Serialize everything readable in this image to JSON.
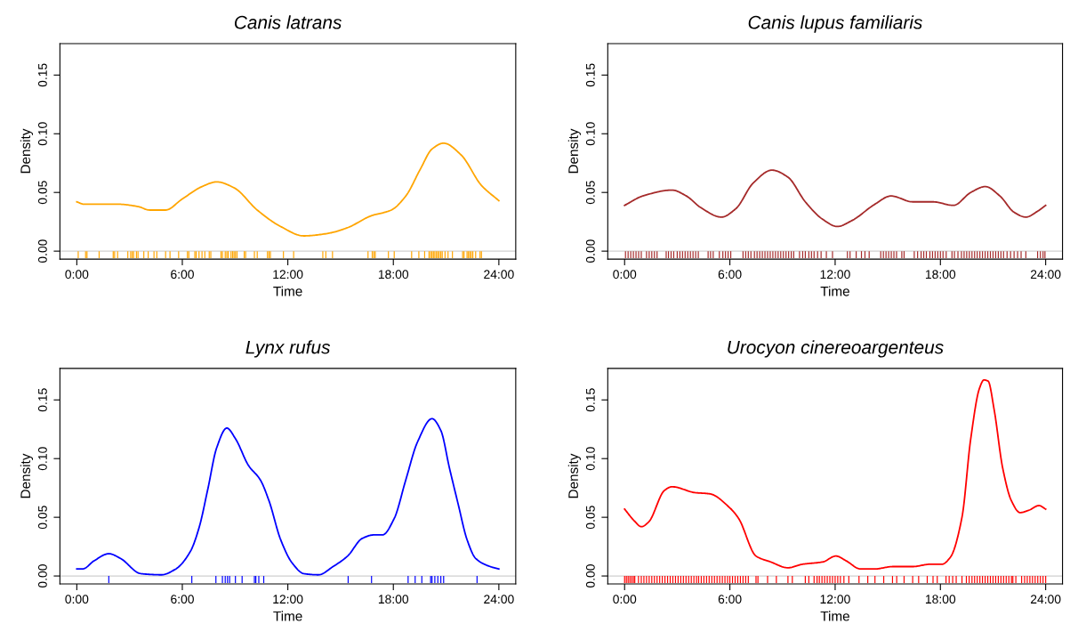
{
  "chart_data": [
    {
      "type": "line",
      "title": "Canis latrans",
      "xlabel": "Time",
      "ylabel": "Density",
      "xlim": [
        -0.96,
        24.96
      ],
      "ylim": [
        -0.0068,
        0.1768
      ],
      "xticks": [
        {
          "value": 0,
          "label": "0:00"
        },
        {
          "value": 6,
          "label": "6:00"
        },
        {
          "value": 12,
          "label": "12:00"
        },
        {
          "value": 18,
          "label": "18:00"
        },
        {
          "value": 24,
          "label": "24:00"
        }
      ],
      "yticks": [
        {
          "value": 0,
          "label": "0.00"
        },
        {
          "value": 0.05,
          "label": "0.05"
        },
        {
          "value": 0.1,
          "label": "0.10"
        },
        {
          "value": 0.15,
          "label": "0.15"
        }
      ],
      "grid": false,
      "ref_lines": [
        {
          "axis": "y",
          "value": 0,
          "color": "#d0d0d0"
        }
      ],
      "series": [
        {
          "color": "#ffa500",
          "x": [
            0,
            0.41,
            2.32,
            3.48,
            4.14,
            5.05,
            5.96,
            7.12,
            7.95,
            8.94,
            10.26,
            11.59,
            12.91,
            14.24,
            15.4,
            16.72,
            17.88,
            18.71,
            19.54,
            20.2,
            20.86,
            21.85,
            23.01,
            24.0
          ],
          "values": [
            0.042,
            0.04,
            0.04,
            0.038,
            0.035,
            0.035,
            0.044,
            0.055,
            0.059,
            0.054,
            0.035,
            0.021,
            0.013,
            0.015,
            0.02,
            0.03,
            0.035,
            0.047,
            0.07,
            0.087,
            0.092,
            0.082,
            0.056,
            0.043
          ]
        },
        {
          "type": "bar",
          "color": "#ffa500",
          "x": [
            0.08,
            0.5,
            0.58,
            1.27,
            2.07,
            2.15,
            2.32,
            2.9,
            3.06,
            3.15,
            3.23,
            3.39,
            3.48,
            3.81,
            4.06,
            4.39,
            4.55,
            5.05,
            5.3,
            5.79,
            6.29,
            6.37,
            6.71,
            6.79,
            6.95,
            7.12,
            7.28,
            7.53,
            7.62,
            8.2,
            8.28,
            8.44,
            8.53,
            8.61,
            8.77,
            8.86,
            8.94,
            9.02,
            9.11,
            9.52,
            9.6,
            10.1,
            10.26,
            10.84,
            10.93,
            11.01,
            11.75,
            12.33,
            13.99,
            14.16,
            14.54,
            16.56,
            16.8,
            16.89,
            16.97,
            17.72,
            18.05,
            19.04,
            19.45,
            19.78,
            20.03,
            20.12,
            20.2,
            20.28,
            20.36,
            20.45,
            20.53,
            20.61,
            20.7,
            20.78,
            20.94,
            21.11,
            21.36,
            21.94,
            22.02,
            22.19,
            22.27,
            22.35,
            22.43,
            22.52,
            22.68,
            22.93,
            23.01
          ],
          "values": [
            -0.006,
            -0.006,
            -0.006,
            -0.006,
            -0.006,
            -0.006,
            -0.006,
            -0.006,
            -0.006,
            -0.006,
            -0.006,
            -0.006,
            -0.006,
            -0.006,
            -0.006,
            -0.006,
            -0.006,
            -0.006,
            -0.006,
            -0.006,
            -0.006,
            -0.006,
            -0.006,
            -0.006,
            -0.006,
            -0.006,
            -0.006,
            -0.006,
            -0.006,
            -0.006,
            -0.006,
            -0.006,
            -0.006,
            -0.006,
            -0.006,
            -0.006,
            -0.006,
            -0.006,
            -0.006,
            -0.006,
            -0.006,
            -0.006,
            -0.006,
            -0.006,
            -0.006,
            -0.006,
            -0.006,
            -0.006,
            -0.006,
            -0.006,
            -0.006,
            -0.006,
            -0.006,
            -0.006,
            -0.006,
            -0.006,
            -0.006,
            -0.006,
            -0.006,
            -0.006,
            -0.006,
            -0.006,
            -0.006,
            -0.006,
            -0.006,
            -0.006,
            -0.006,
            -0.006,
            -0.006,
            -0.006,
            -0.006,
            -0.006,
            -0.006,
            -0.006,
            -0.006,
            -0.006,
            -0.006,
            -0.006,
            -0.006,
            -0.006,
            -0.006,
            -0.006,
            -0.006
          ]
        }
      ]
    },
    {
      "type": "line",
      "title": "Canis lupus familiaris",
      "xlabel": "Time",
      "ylabel": "Density",
      "xlim": [
        -0.96,
        24.96
      ],
      "ylim": [
        -0.0068,
        0.1768
      ],
      "xticks": [
        {
          "value": 0,
          "label": "0:00"
        },
        {
          "value": 6,
          "label": "6:00"
        },
        {
          "value": 12,
          "label": "12:00"
        },
        {
          "value": 18,
          "label": "18:00"
        },
        {
          "value": 24,
          "label": "24:00"
        }
      ],
      "yticks": [
        {
          "value": 0,
          "label": "0.00"
        },
        {
          "value": 0.05,
          "label": "0.05"
        },
        {
          "value": 0.1,
          "label": "0.10"
        },
        {
          "value": 0.15,
          "label": "0.15"
        }
      ],
      "grid": false,
      "ref_lines": [
        {
          "axis": "y",
          "value": 0,
          "color": "#d0d0d0"
        }
      ],
      "series": [
        {
          "color": "#a52a2a",
          "x": [
            0,
            1.04,
            2.7,
            3.52,
            4.35,
            5.51,
            6.33,
            7.33,
            8.4,
            9.31,
            10.3,
            11.3,
            12.12,
            12.95,
            14.27,
            15.18,
            16.42,
            17.58,
            18.74,
            19.73,
            20.56,
            21.39,
            22.21,
            22.87,
            23.54,
            24.0
          ],
          "values": [
            0.039,
            0.047,
            0.052,
            0.047,
            0.037,
            0.029,
            0.036,
            0.058,
            0.069,
            0.063,
            0.042,
            0.027,
            0.021,
            0.026,
            0.04,
            0.047,
            0.042,
            0.042,
            0.039,
            0.05,
            0.055,
            0.047,
            0.033,
            0.029,
            0.034,
            0.039
          ]
        },
        {
          "type": "bar",
          "color": "#a52a2a",
          "x": [
            0.05,
            0.2,
            0.35,
            0.5,
            0.65,
            0.8,
            0.95,
            1.25,
            1.4,
            1.55,
            1.7,
            1.85,
            2.37,
            2.5,
            2.65,
            2.8,
            3.0,
            3.15,
            3.3,
            3.45,
            3.6,
            3.75,
            3.9,
            4.05,
            4.2,
            4.76,
            4.9,
            5.05,
            5.4,
            5.6,
            5.75,
            5.9,
            6.05,
            6.75,
            6.9,
            7.05,
            7.2,
            7.4,
            7.55,
            7.7,
            7.85,
            8.0,
            8.15,
            8.3,
            8.45,
            8.6,
            8.75,
            8.9,
            9.05,
            9.2,
            9.35,
            9.5,
            9.64,
            9.97,
            10.15,
            10.3,
            10.5,
            10.65,
            10.8,
            11.0,
            11.2,
            11.5,
            11.85,
            12.7,
            12.85,
            13.2,
            13.5,
            13.7,
            13.94,
            14.6,
            14.75,
            14.9,
            15.05,
            15.2,
            15.35,
            15.5,
            15.8,
            15.93,
            16.51,
            16.7,
            16.9,
            17.05,
            17.2,
            17.4,
            17.55,
            17.7,
            17.85,
            18.0,
            18.15,
            18.33,
            18.66,
            18.8,
            19.0,
            19.2,
            19.35,
            19.5,
            19.65,
            19.8,
            19.95,
            20.1,
            20.25,
            20.4,
            20.55,
            20.7,
            20.85,
            21.0,
            21.15,
            21.3,
            21.45,
            21.6,
            21.8,
            22.0,
            22.2,
            22.4,
            22.6,
            22.87,
            23.54,
            23.7,
            23.85,
            23.96
          ],
          "values": [
            -0.006,
            -0.006,
            -0.006,
            -0.006,
            -0.006,
            -0.006,
            -0.006,
            -0.006,
            -0.006,
            -0.006,
            -0.006,
            -0.006,
            -0.006,
            -0.006,
            -0.006,
            -0.006,
            -0.006,
            -0.006,
            -0.006,
            -0.006,
            -0.006,
            -0.006,
            -0.006,
            -0.006,
            -0.006,
            -0.006,
            -0.006,
            -0.006,
            -0.006,
            -0.006,
            -0.006,
            -0.006,
            -0.006,
            -0.006,
            -0.006,
            -0.006,
            -0.006,
            -0.006,
            -0.006,
            -0.006,
            -0.006,
            -0.006,
            -0.006,
            -0.006,
            -0.006,
            -0.006,
            -0.006,
            -0.006,
            -0.006,
            -0.006,
            -0.006,
            -0.006,
            -0.006,
            -0.006,
            -0.006,
            -0.006,
            -0.006,
            -0.006,
            -0.006,
            -0.006,
            -0.006,
            -0.006,
            -0.006,
            -0.006,
            -0.006,
            -0.006,
            -0.006,
            -0.006,
            -0.006,
            -0.006,
            -0.006,
            -0.006,
            -0.006,
            -0.006,
            -0.006,
            -0.006,
            -0.006,
            -0.006,
            -0.006,
            -0.006,
            -0.006,
            -0.006,
            -0.006,
            -0.006,
            -0.006,
            -0.006,
            -0.006,
            -0.006,
            -0.006,
            -0.006,
            -0.006,
            -0.006,
            -0.006,
            -0.006,
            -0.006,
            -0.006,
            -0.006,
            -0.006,
            -0.006,
            -0.006,
            -0.006,
            -0.006,
            -0.006,
            -0.006,
            -0.006,
            -0.006,
            -0.006,
            -0.006,
            -0.006,
            -0.006,
            -0.006,
            -0.006,
            -0.006,
            -0.006,
            -0.006,
            -0.006,
            -0.006,
            -0.006,
            -0.006,
            -0.006
          ]
        }
      ]
    },
    {
      "type": "line",
      "title": "Lynx rufus",
      "xlabel": "Time",
      "ylabel": "Density",
      "xlim": [
        -0.96,
        24.96
      ],
      "ylim": [
        -0.0068,
        0.1768
      ],
      "xticks": [
        {
          "value": 0,
          "label": "0:00"
        },
        {
          "value": 6,
          "label": "6:00"
        },
        {
          "value": 12,
          "label": "12:00"
        },
        {
          "value": 18,
          "label": "18:00"
        },
        {
          "value": 24,
          "label": "24:00"
        }
      ],
      "yticks": [
        {
          "value": 0,
          "label": "0.00"
        },
        {
          "value": 0.05,
          "label": "0.05"
        },
        {
          "value": 0.1,
          "label": "0.10"
        },
        {
          "value": 0.15,
          "label": "0.15"
        }
      ],
      "grid": false,
      "ref_lines": [
        {
          "axis": "y",
          "value": 0,
          "color": "#d0d0d0"
        }
      ],
      "series": [
        {
          "color": "#0000ff",
          "x": [
            0,
            0.33,
            0.99,
            1.82,
            2.48,
            3.64,
            4.8,
            5.63,
            6.46,
            6.95,
            7.45,
            7.95,
            8.53,
            9.02,
            9.77,
            10.43,
            10.93,
            11.59,
            12.25,
            12.91,
            13.74,
            14.57,
            15.4,
            16.23,
            16.89,
            17.38,
            18.05,
            18.71,
            19.37,
            20.2,
            20.7,
            21.19,
            21.69,
            22.19,
            22.68,
            23.51,
            24.0
          ],
          "values": [
            0.006,
            0.006,
            0.013,
            0.019,
            0.015,
            0.002,
            0.001,
            0.006,
            0.021,
            0.041,
            0.074,
            0.109,
            0.126,
            0.117,
            0.094,
            0.082,
            0.064,
            0.031,
            0.011,
            0.002,
            0.001,
            0.008,
            0.017,
            0.032,
            0.035,
            0.035,
            0.049,
            0.082,
            0.114,
            0.134,
            0.124,
            0.092,
            0.061,
            0.031,
            0.015,
            0.008,
            0.006
          ]
        },
        {
          "type": "bar",
          "color": "#0000ff",
          "x": [
            1.82,
            6.54,
            7.91,
            8.28,
            8.44,
            8.57,
            8.69,
            9.02,
            9.4,
            10.1,
            10.18,
            10.35,
            10.63,
            15.43,
            16.76,
            18.84,
            19.24,
            19.62,
            20.12,
            20.2,
            20.36,
            20.53,
            20.7,
            20.86,
            22.76
          ],
          "values": [
            -0.006,
            -0.006,
            -0.006,
            -0.006,
            -0.006,
            -0.006,
            -0.006,
            -0.006,
            -0.006,
            -0.006,
            -0.006,
            -0.006,
            -0.006,
            -0.006,
            -0.006,
            -0.006,
            -0.006,
            -0.006,
            -0.006,
            -0.006,
            -0.006,
            -0.006,
            -0.006,
            -0.006,
            -0.006
          ]
        }
      ]
    },
    {
      "type": "line",
      "title": "Urocyon cinereoargenteus",
      "xlabel": "Time",
      "ylabel": "Density",
      "xlim": [
        -0.96,
        24.96
      ],
      "ylim": [
        -0.0068,
        0.1768
      ],
      "xticks": [
        {
          "value": 0,
          "label": "0:00"
        },
        {
          "value": 6,
          "label": "6:00"
        },
        {
          "value": 12,
          "label": "12:00"
        },
        {
          "value": 18,
          "label": "18:00"
        },
        {
          "value": 24,
          "label": "24:00"
        }
      ],
      "yticks": [
        {
          "value": 0,
          "label": "0.00"
        },
        {
          "value": 0.05,
          "label": "0.05"
        },
        {
          "value": 0.1,
          "label": "0.10"
        },
        {
          "value": 0.15,
          "label": "0.15"
        }
      ],
      "grid": false,
      "ref_lines": [
        {
          "axis": "y",
          "value": 0,
          "color": "#d0d0d0"
        }
      ],
      "series": [
        {
          "color": "#ff0000",
          "x": [
            0,
            0.55,
            0.96,
            1.37,
            2.28,
            2.7,
            4.02,
            4.85,
            6.0,
            6.5,
            7.49,
            8.32,
            9.31,
            10.14,
            11.3,
            12.04,
            12.62,
            13.45,
            14.27,
            15.27,
            16.42,
            17.42,
            18.08,
            18.57,
            19.23,
            19.73,
            20.23,
            20.48,
            20.72,
            21.06,
            21.55,
            22.05,
            22.54,
            23.04,
            23.62,
            24.0
          ],
          "values": [
            0.057,
            0.047,
            0.042,
            0.046,
            0.073,
            0.076,
            0.071,
            0.07,
            0.058,
            0.049,
            0.017,
            0.012,
            0.007,
            0.01,
            0.012,
            0.017,
            0.013,
            0.006,
            0.006,
            0.008,
            0.008,
            0.01,
            0.01,
            0.016,
            0.05,
            0.117,
            0.16,
            0.167,
            0.166,
            0.142,
            0.092,
            0.064,
            0.054,
            0.056,
            0.06,
            0.057
          ]
        },
        {
          "type": "bar",
          "color": "#ff0000",
          "x": [
            0,
            0.1,
            0.2,
            0.3,
            0.4,
            0.5,
            0.58,
            0.79,
            0.95,
            1.1,
            1.25,
            1.4,
            1.55,
            1.7,
            1.85,
            2.0,
            2.15,
            2.3,
            2.45,
            2.6,
            2.75,
            2.9,
            3.05,
            3.2,
            3.35,
            3.5,
            3.65,
            3.8,
            3.95,
            4.1,
            4.22,
            4.37,
            4.52,
            4.67,
            4.82,
            4.97,
            5.12,
            5.27,
            5.42,
            5.57,
            5.72,
            5.87,
            6.0,
            6.15,
            6.3,
            6.45,
            6.6,
            6.75,
            6.9,
            7.05,
            7.49,
            7.6,
            8.15,
            8.65,
            9.31,
            9.56,
            10.3,
            10.5,
            10.8,
            10.97,
            11.1,
            11.25,
            11.4,
            11.55,
            11.7,
            11.85,
            12.0,
            12.15,
            12.3,
            12.5,
            12.78,
            13.36,
            13.86,
            14.27,
            14.77,
            15.27,
            15.51,
            15.93,
            16.42,
            16.76,
            17.25,
            17.58,
            17.82,
            18.32,
            18.5,
            18.7,
            18.9,
            19.23,
            19.48,
            19.64,
            19.8,
            19.95,
            20.1,
            20.25,
            20.4,
            20.55,
            20.7,
            20.85,
            21.0,
            21.15,
            21.3,
            21.45,
            21.6,
            21.75,
            21.9,
            22.05,
            22.13,
            22.3,
            22.63,
            22.8,
            22.95,
            23.1,
            23.25,
            23.4,
            23.55,
            23.7,
            23.85,
            24.0
          ],
          "values": [
            -0.006,
            -0.006,
            -0.006,
            -0.006,
            -0.006,
            -0.006,
            -0.006,
            -0.006,
            -0.006,
            -0.006,
            -0.006,
            -0.006,
            -0.006,
            -0.006,
            -0.006,
            -0.006,
            -0.006,
            -0.006,
            -0.006,
            -0.006,
            -0.006,
            -0.006,
            -0.006,
            -0.006,
            -0.006,
            -0.006,
            -0.006,
            -0.006,
            -0.006,
            -0.006,
            -0.006,
            -0.006,
            -0.006,
            -0.006,
            -0.006,
            -0.006,
            -0.006,
            -0.006,
            -0.006,
            -0.006,
            -0.006,
            -0.006,
            -0.006,
            -0.006,
            -0.006,
            -0.006,
            -0.006,
            -0.006,
            -0.006,
            -0.006,
            -0.006,
            -0.006,
            -0.006,
            -0.006,
            -0.006,
            -0.006,
            -0.006,
            -0.006,
            -0.006,
            -0.006,
            -0.006,
            -0.006,
            -0.006,
            -0.006,
            -0.006,
            -0.006,
            -0.006,
            -0.006,
            -0.006,
            -0.006,
            -0.006,
            -0.006,
            -0.006,
            -0.006,
            -0.006,
            -0.006,
            -0.006,
            -0.006,
            -0.006,
            -0.006,
            -0.006,
            -0.006,
            -0.006,
            -0.006,
            -0.006,
            -0.006,
            -0.006,
            -0.006,
            -0.006,
            -0.006,
            -0.006,
            -0.006,
            -0.006,
            -0.006,
            -0.006,
            -0.006,
            -0.006,
            -0.006,
            -0.006,
            -0.006,
            -0.006,
            -0.006,
            -0.006,
            -0.006,
            -0.006,
            -0.006,
            -0.006,
            -0.006,
            -0.006,
            -0.006,
            -0.006,
            -0.006,
            -0.006,
            -0.006,
            -0.006,
            -0.006,
            -0.006,
            -0.006
          ]
        }
      ]
    }
  ]
}
